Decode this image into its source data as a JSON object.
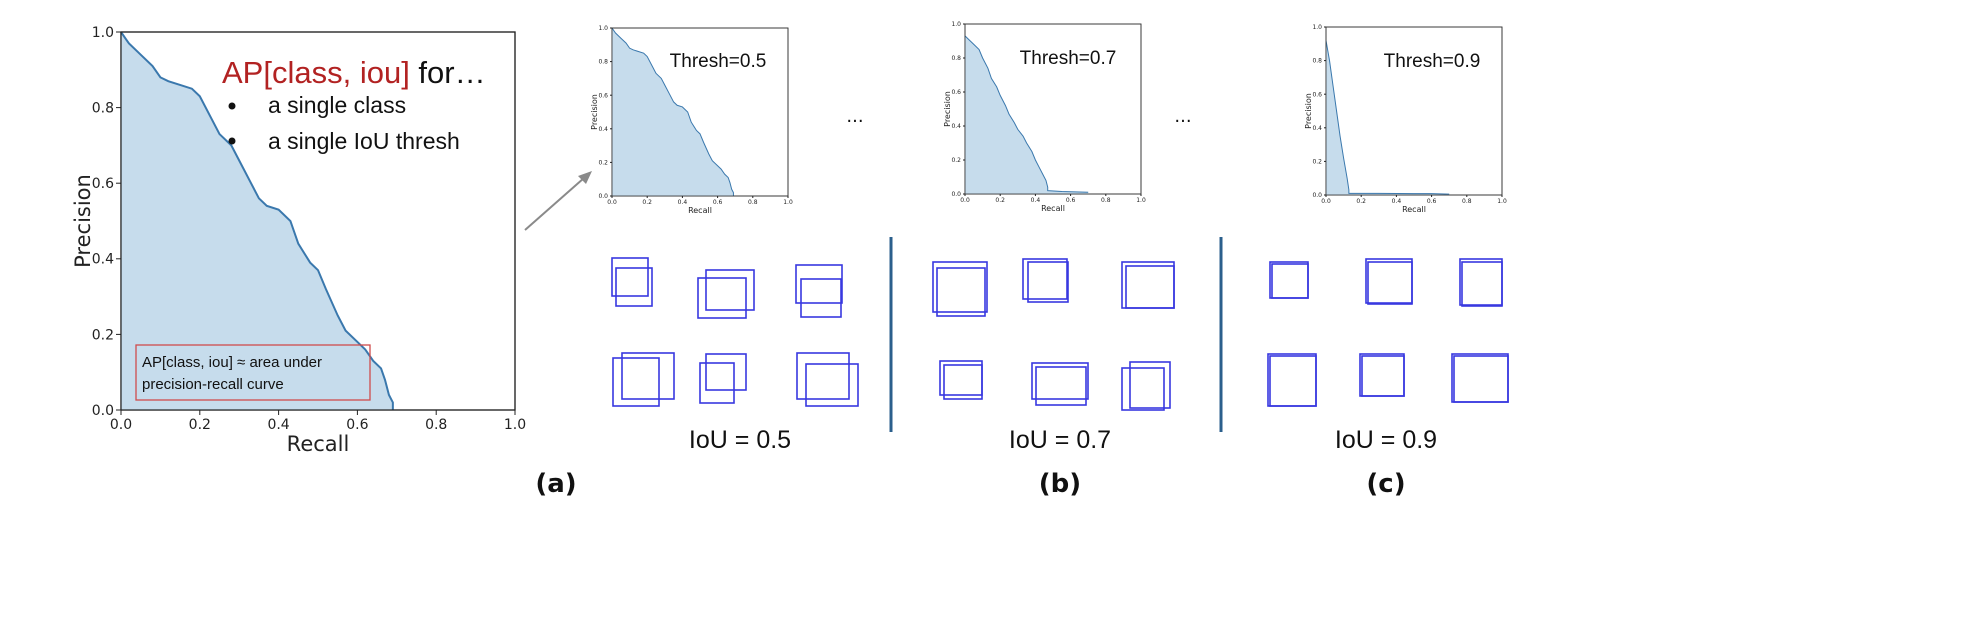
{
  "colors": {
    "fill": "#c6dcec",
    "line": "#3a78ad",
    "box": "#3838e0",
    "annotation_red": "#b22222",
    "divider": "#2b5f8c",
    "arrow": "#8a8a8a"
  },
  "main_chart": {
    "type": "area",
    "xlabel": "Recall",
    "ylabel": "Precision",
    "xlim": [
      0,
      1
    ],
    "ylim": [
      0,
      1
    ],
    "xticks": [
      "0.0",
      "0.2",
      "0.4",
      "0.6",
      "0.8",
      "1.0"
    ],
    "yticks": [
      "0.0",
      "0.2",
      "0.4",
      "0.6",
      "0.8",
      "1.0"
    ],
    "title_red": "AP[class, iou]",
    "title_rest": " for…",
    "bullets": [
      "a single class",
      "a single IoU thresh"
    ],
    "box_text": [
      "AP[class, iou] ≈ area under",
      "precision-recall curve"
    ]
  },
  "chart_data": [
    {
      "type": "area",
      "xlabel": "Recall",
      "ylabel": "Precision",
      "xlim": [
        0,
        1
      ],
      "ylim": [
        0,
        1
      ],
      "x": [
        0.0,
        0.02,
        0.05,
        0.08,
        0.1,
        0.12,
        0.15,
        0.18,
        0.2,
        0.23,
        0.25,
        0.28,
        0.3,
        0.33,
        0.35,
        0.37,
        0.4,
        0.43,
        0.45,
        0.48,
        0.5,
        0.52,
        0.55,
        0.57,
        0.6,
        0.62,
        0.64,
        0.66,
        0.67,
        0.68,
        0.69,
        0.69
      ],
      "y": [
        1.0,
        0.97,
        0.94,
        0.91,
        0.88,
        0.87,
        0.86,
        0.85,
        0.83,
        0.77,
        0.73,
        0.7,
        0.66,
        0.6,
        0.56,
        0.54,
        0.53,
        0.5,
        0.44,
        0.39,
        0.37,
        0.32,
        0.25,
        0.21,
        0.18,
        0.16,
        0.13,
        0.11,
        0.08,
        0.04,
        0.02,
        0.0
      ]
    },
    {
      "type": "area",
      "label": "Thresh=0.5",
      "xlabel": "Recall",
      "ylabel": "Precision",
      "xlim": [
        0,
        1
      ],
      "ylim": [
        0,
        1
      ],
      "x": [
        0.0,
        0.02,
        0.05,
        0.08,
        0.1,
        0.12,
        0.15,
        0.18,
        0.2,
        0.23,
        0.25,
        0.28,
        0.3,
        0.33,
        0.35,
        0.37,
        0.4,
        0.43,
        0.45,
        0.48,
        0.5,
        0.52,
        0.55,
        0.57,
        0.6,
        0.62,
        0.64,
        0.66,
        0.67,
        0.68,
        0.69,
        0.69
      ],
      "y": [
        1.0,
        0.97,
        0.94,
        0.91,
        0.88,
        0.87,
        0.86,
        0.85,
        0.83,
        0.77,
        0.73,
        0.7,
        0.66,
        0.6,
        0.56,
        0.54,
        0.53,
        0.5,
        0.44,
        0.39,
        0.37,
        0.32,
        0.25,
        0.21,
        0.18,
        0.16,
        0.13,
        0.11,
        0.08,
        0.04,
        0.02,
        0.0
      ]
    },
    {
      "type": "area",
      "label": "Thresh=0.7",
      "xlabel": "Recall",
      "ylabel": "Precision",
      "xlim": [
        0,
        1
      ],
      "ylim": [
        0,
        1
      ],
      "x": [
        0.0,
        0.03,
        0.05,
        0.08,
        0.1,
        0.13,
        0.15,
        0.18,
        0.2,
        0.23,
        0.25,
        0.28,
        0.3,
        0.33,
        0.35,
        0.38,
        0.4,
        0.42,
        0.44,
        0.46,
        0.47,
        0.47,
        0.55,
        0.65,
        0.7
      ],
      "y": [
        0.93,
        0.9,
        0.88,
        0.85,
        0.8,
        0.74,
        0.68,
        0.63,
        0.58,
        0.52,
        0.47,
        0.42,
        0.38,
        0.34,
        0.3,
        0.25,
        0.2,
        0.16,
        0.12,
        0.08,
        0.04,
        0.02,
        0.015,
        0.012,
        0.01
      ]
    },
    {
      "type": "area",
      "label": "Thresh=0.9",
      "xlabel": "Recall",
      "ylabel": "Precision",
      "xlim": [
        0,
        1
      ],
      "ylim": [
        0,
        1
      ],
      "x": [
        0.0,
        0.02,
        0.04,
        0.06,
        0.08,
        0.1,
        0.12,
        0.13,
        0.13,
        0.3,
        0.5,
        0.6,
        0.7
      ],
      "y": [
        0.92,
        0.8,
        0.65,
        0.5,
        0.35,
        0.22,
        0.1,
        0.03,
        0.01,
        0.01,
        0.008,
        0.008,
        0.005
      ]
    }
  ],
  "small_charts": {
    "xlabel": "Recall",
    "ylabel": "Precision",
    "xticks": [
      "0.0",
      "0.2",
      "0.4",
      "0.6",
      "0.8",
      "1.0"
    ],
    "yticks": [
      "0.0",
      "0.2",
      "0.4",
      "0.6",
      "0.8",
      "1.0"
    ],
    "labels": [
      "Thresh=0.5",
      "Thresh=0.7",
      "Thresh=0.9"
    ]
  },
  "ellipsis": "...",
  "iou_labels": [
    "IoU = 0.5",
    "IoU = 0.7",
    "IoU = 0.9"
  ],
  "panel_labels": [
    "(a)",
    "(b)",
    "(c)"
  ],
  "box_pairs": [
    [
      0.55,
      0.6,
      0.55,
      0.65,
      0.6,
      0.6
    ],
    [
      0.75,
      0.75,
      0.75,
      0.72,
      0.7,
      0.75
    ],
    [
      0.92,
      0.95,
      0.92,
      0.95,
      0.92,
      0.93
    ]
  ]
}
